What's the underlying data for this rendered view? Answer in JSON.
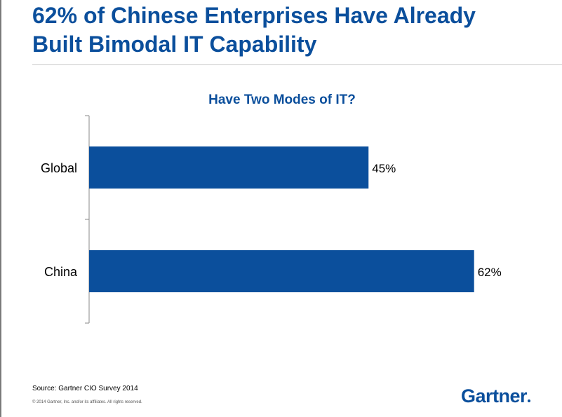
{
  "slide": {
    "title_line1": "62% of Chinese Enterprises Have Already",
    "title_line2": "Built Bimodal IT Capability",
    "source": "Source: Gartner CIO Survey 2014",
    "copyright": "© 2014 Gartner, Inc. and/or its affiliates. All rights reserved.",
    "brand": "Gartner"
  },
  "colors": {
    "accent": "#0b4f9c",
    "bar": "#0b4f9c"
  },
  "chart_data": {
    "type": "bar",
    "orientation": "horizontal",
    "title": "Have Two Modes of IT?",
    "categories": [
      "Global",
      "China"
    ],
    "values": [
      45,
      62
    ],
    "data_labels": [
      "45%",
      "62%"
    ],
    "xlim": [
      0,
      100
    ],
    "grid": false,
    "legend": "none"
  }
}
